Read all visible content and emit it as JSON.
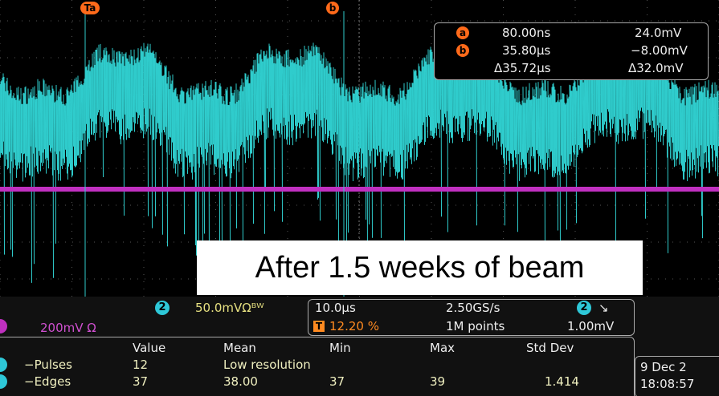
{
  "cursors": {
    "trigger": "T",
    "a": "a",
    "b": "b"
  },
  "readout": {
    "a": {
      "label": "a",
      "time": "80.00ns",
      "volt": "24.0mV"
    },
    "b": {
      "label": "b",
      "time": "35.80µs",
      "volt": "−8.00mV"
    },
    "delta": {
      "time": "Δ35.72µs",
      "volt": "Δ32.0mV"
    }
  },
  "overlay": "After 1.5 weeks of beam",
  "channel": {
    "badge": "2",
    "scale": "50.0mVΩᴮᵂ",
    "ch1_scale": "200mV Ω"
  },
  "acquisition": {
    "timebase": "10.0µs",
    "trigger_icon": "T",
    "trigger_pos": "12.20 %",
    "sample_rate": "2.50GS/s",
    "record": "1M points",
    "trigger_source": "2",
    "trigger_slope": "↘",
    "trigger_level": "1.00mV"
  },
  "measurements": {
    "columns": [
      "Value",
      "Mean",
      "Min",
      "Max",
      "Std Dev"
    ],
    "rows": [
      [
        "−Pulses",
        "12",
        "Low resolution"
      ],
      [
        "−Edges",
        "37",
        "38.00",
        "37",
        "39",
        "1.414"
      ]
    ]
  },
  "datetime": {
    "date": "9 Dec 2",
    "time": "18:08:57"
  }
}
